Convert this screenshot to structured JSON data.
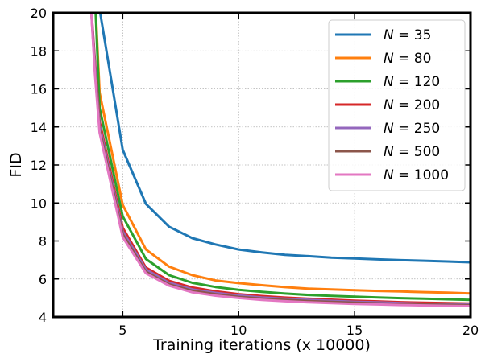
{
  "chart_data": {
    "type": "line",
    "xlabel": "Training iterations (x 10000)",
    "ylabel": "FID",
    "xlim": [
      2,
      20
    ],
    "ylim": [
      4,
      20
    ],
    "xticks": [
      5,
      10,
      15,
      20
    ],
    "yticks": [
      4,
      6,
      8,
      10,
      12,
      14,
      16,
      18,
      20
    ],
    "grid": true,
    "legend_position": "top-right",
    "series": [
      {
        "name": "35",
        "color": "#1f77b4",
        "x": [
          3.8,
          4,
          5,
          6,
          7,
          8,
          9,
          10,
          11,
          12,
          13,
          14,
          15,
          16,
          17,
          18,
          19,
          20
        ],
        "y": [
          21,
          20.2,
          12.8,
          9.95,
          8.75,
          8.15,
          7.82,
          7.55,
          7.4,
          7.27,
          7.2,
          7.12,
          7.08,
          7.03,
          6.99,
          6.96,
          6.92,
          6.88
        ]
      },
      {
        "name": "80",
        "color": "#ff7f0e",
        "x": [
          3.8,
          4,
          5,
          6,
          7,
          8,
          9,
          10,
          11,
          12,
          13,
          14,
          15,
          16,
          17,
          18,
          19,
          20
        ],
        "y": [
          21,
          15.8,
          9.9,
          7.55,
          6.65,
          6.2,
          5.92,
          5.78,
          5.67,
          5.57,
          5.49,
          5.45,
          5.41,
          5.37,
          5.34,
          5.31,
          5.28,
          5.24
        ]
      },
      {
        "name": "120",
        "color": "#2ca02c",
        "x": [
          3.8,
          4,
          5,
          6,
          7,
          8,
          9,
          10,
          11,
          12,
          13,
          14,
          15,
          16,
          17,
          18,
          19,
          20
        ],
        "y": [
          21,
          15.0,
          9.3,
          7.05,
          6.2,
          5.8,
          5.58,
          5.43,
          5.32,
          5.23,
          5.16,
          5.11,
          5.07,
          5.03,
          4.99,
          4.96,
          4.93,
          4.9
        ]
      },
      {
        "name": "200",
        "color": "#d62728",
        "x": [
          3.6,
          3.8,
          4,
          5,
          6,
          7,
          8,
          9,
          10,
          11,
          12,
          13,
          14,
          15,
          16,
          17,
          18,
          19,
          20
        ],
        "y": [
          21,
          17.5,
          14.3,
          8.7,
          6.6,
          5.9,
          5.55,
          5.35,
          5.2,
          5.1,
          5.02,
          4.96,
          4.91,
          4.86,
          4.82,
          4.78,
          4.75,
          4.73,
          4.71
        ]
      },
      {
        "name": "250",
        "color": "#9467bd",
        "x": [
          3.6,
          3.8,
          4,
          5,
          6,
          7,
          8,
          9,
          10,
          11,
          12,
          13,
          14,
          15,
          16,
          17,
          18,
          19,
          20
        ],
        "y": [
          21,
          17.3,
          14.1,
          8.5,
          6.5,
          5.8,
          5.45,
          5.27,
          5.13,
          5.03,
          4.96,
          4.9,
          4.85,
          4.8,
          4.77,
          4.73,
          4.7,
          4.68,
          4.66
        ]
      },
      {
        "name": "500",
        "color": "#8c564b",
        "x": [
          3.6,
          3.8,
          4,
          5,
          6,
          7,
          8,
          9,
          10,
          11,
          12,
          13,
          14,
          15,
          16,
          17,
          18,
          19,
          20
        ],
        "y": [
          21,
          17.0,
          13.9,
          8.35,
          6.38,
          5.72,
          5.38,
          5.2,
          5.06,
          4.97,
          4.9,
          4.84,
          4.79,
          4.75,
          4.72,
          4.69,
          4.66,
          4.64,
          4.62
        ]
      },
      {
        "name": "1000",
        "color": "#e377c2",
        "x": [
          3.6,
          3.8,
          4,
          5,
          6,
          7,
          8,
          9,
          10,
          11,
          12,
          13,
          14,
          15,
          16,
          17,
          18,
          19,
          20
        ],
        "y": [
          21,
          16.8,
          13.7,
          8.2,
          6.3,
          5.65,
          5.3,
          5.12,
          5.0,
          4.9,
          4.83,
          4.77,
          4.73,
          4.69,
          4.66,
          4.63,
          4.61,
          4.59,
          4.57
        ]
      }
    ]
  }
}
